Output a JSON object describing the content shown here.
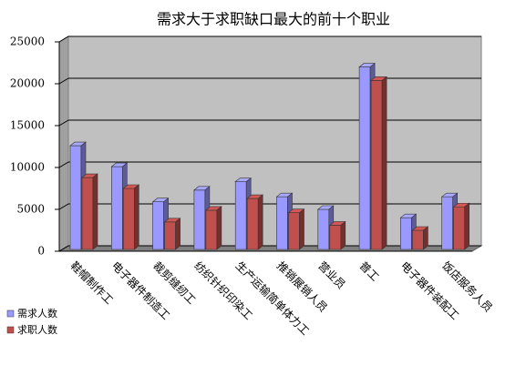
{
  "chart_data": {
    "type": "bar3d",
    "title": "需求大于求职缺口最大的前十个职业",
    "categories": [
      "鞋帽制作工",
      "电子器件制造工",
      "裁剪缝纫工",
      "纺织针织印染工",
      "生产运输简单体力工",
      "推销展销人员",
      "营业员",
      "普工",
      "电子器件装配工",
      "饭店服务人员"
    ],
    "series": [
      {
        "name": "需求人数",
        "color": "#9999ff",
        "values": [
          12600,
          10100,
          5900,
          7300,
          8300,
          6500,
          5000,
          22000,
          4000,
          6500
        ]
      },
      {
        "name": "求职人数",
        "color": "#c0504d",
        "values": [
          8800,
          7500,
          3500,
          4900,
          6300,
          4600,
          3100,
          20400,
          2500,
          5300
        ]
      }
    ],
    "ylim": [
      0,
      25000
    ],
    "yticks": [
      0,
      5000,
      10000,
      15000,
      20000,
      25000
    ],
    "grid": true,
    "legend": "bottom-left"
  }
}
